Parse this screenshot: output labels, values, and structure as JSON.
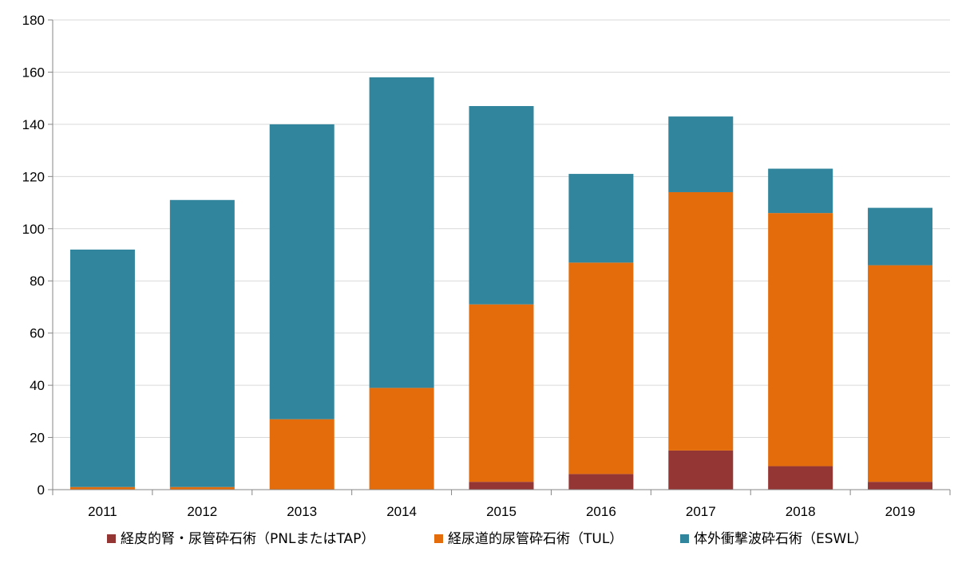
{
  "chart_data": {
    "type": "bar",
    "stacked": true,
    "title": "",
    "xlabel": "",
    "ylabel": "",
    "categories": [
      "2011",
      "2012",
      "2013",
      "2014",
      "2015",
      "2016",
      "2017",
      "2018",
      "2019"
    ],
    "ylim": [
      0,
      180
    ],
    "yticks": [
      0,
      20,
      40,
      60,
      80,
      100,
      120,
      140,
      160,
      180
    ],
    "grid": true,
    "legend_position": "bottom",
    "series": [
      {
        "name": "経皮的腎・尿管砕石術（PNLまたはTAP）",
        "color": "#943634",
        "values": [
          0,
          0,
          0,
          0,
          3,
          6,
          15,
          9,
          3
        ]
      },
      {
        "name": "経尿道的尿管砕石術（TUL）",
        "color": "#E46C0A",
        "values": [
          1,
          1,
          27,
          39,
          68,
          81,
          99,
          97,
          83
        ]
      },
      {
        "name": "体外衝撃波砕石術（ESWL）",
        "color": "#31859C",
        "values": [
          91,
          110,
          113,
          119,
          76,
          34,
          29,
          17,
          22
        ]
      }
    ]
  }
}
